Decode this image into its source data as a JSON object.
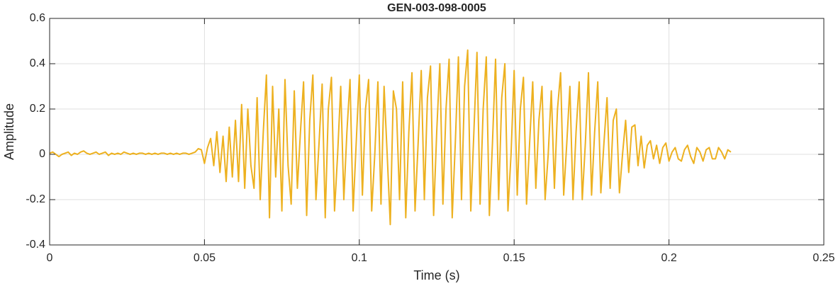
{
  "chart_data": {
    "type": "line",
    "title": "GEN-003-098-0005",
    "x_label": "Time (s)",
    "y_label": "Amplitude",
    "color": "#EDB120",
    "grid": true,
    "xlim": [
      0,
      0.25
    ],
    "xticks": [
      0,
      0.05,
      0.1,
      0.15,
      0.2,
      0.25
    ],
    "ylim": [
      -0.4,
      0.6
    ],
    "yticks": [
      -0.4,
      -0.2,
      0,
      0.2,
      0.4,
      0.6
    ],
    "x": [
      0,
      0.001,
      0.002,
      0.003,
      0.004,
      0.005,
      0.006,
      0.007,
      0.008,
      0.009,
      0.01,
      0.011,
      0.012,
      0.013,
      0.014,
      0.015,
      0.016,
      0.017,
      0.018,
      0.019,
      0.02,
      0.021,
      0.022,
      0.023,
      0.024,
      0.025,
      0.026,
      0.027,
      0.028,
      0.029,
      0.03,
      0.031,
      0.032,
      0.033,
      0.034,
      0.035,
      0.036,
      0.037,
      0.038,
      0.039,
      0.04,
      0.041,
      0.042,
      0.043,
      0.044,
      0.045,
      0.046,
      0.047,
      0.048,
      0.049,
      0.05,
      0.051,
      0.052,
      0.053,
      0.054,
      0.055,
      0.056,
      0.057,
      0.058,
      0.059,
      0.06,
      0.061,
      0.062,
      0.063,
      0.064,
      0.065,
      0.066,
      0.067,
      0.068,
      0.069,
      0.07,
      0.071,
      0.072,
      0.073,
      0.074,
      0.075,
      0.076,
      0.077,
      0.078,
      0.079,
      0.08,
      0.081,
      0.082,
      0.083,
      0.084,
      0.085,
      0.086,
      0.087,
      0.088,
      0.089,
      0.09,
      0.091,
      0.092,
      0.093,
      0.094,
      0.095,
      0.096,
      0.097,
      0.098,
      0.099,
      0.1,
      0.101,
      0.102,
      0.103,
      0.104,
      0.105,
      0.106,
      0.107,
      0.108,
      0.109,
      0.11,
      0.111,
      0.112,
      0.113,
      0.114,
      0.115,
      0.116,
      0.117,
      0.118,
      0.119,
      0.12,
      0.121,
      0.122,
      0.123,
      0.124,
      0.125,
      0.126,
      0.127,
      0.128,
      0.129,
      0.13,
      0.131,
      0.132,
      0.133,
      0.134,
      0.135,
      0.136,
      0.137,
      0.138,
      0.139,
      0.14,
      0.141,
      0.142,
      0.143,
      0.144,
      0.145,
      0.146,
      0.147,
      0.148,
      0.149,
      0.15,
      0.151,
      0.152,
      0.153,
      0.154,
      0.155,
      0.156,
      0.157,
      0.158,
      0.159,
      0.16,
      0.161,
      0.162,
      0.163,
      0.164,
      0.165,
      0.166,
      0.167,
      0.168,
      0.169,
      0.17,
      0.171,
      0.172,
      0.173,
      0.174,
      0.175,
      0.176,
      0.177,
      0.178,
      0.179,
      0.18,
      0.181,
      0.182,
      0.183,
      0.184,
      0.185,
      0.186,
      0.187,
      0.188,
      0.189,
      0.19,
      0.191,
      0.192,
      0.193,
      0.194,
      0.195,
      0.196,
      0.197,
      0.198,
      0.199,
      0.2,
      0.201,
      0.202,
      0.203,
      0.204,
      0.205,
      0.206,
      0.207,
      0.208,
      0.209,
      0.21,
      0.211,
      0.212,
      0.213,
      0.214,
      0.215,
      0.216,
      0.217,
      0.218,
      0.219,
      0.22
    ],
    "values": [
      0.005,
      0.01,
      0.0,
      -0.01,
      0.0,
      0.005,
      0.01,
      -0.005,
      0.005,
      0.0,
      0.01,
      0.015,
      0.005,
      0.0,
      0.005,
      0.01,
      0.0,
      0.005,
      0.01,
      -0.005,
      0.005,
      0.0,
      0.005,
      0.0,
      0.01,
      0.005,
      0.0,
      0.005,
      0.0,
      0.005,
      0.005,
      0.0,
      0.005,
      0.0,
      0.005,
      0.0,
      0.005,
      0.005,
      0.0,
      0.005,
      0.0,
      0.005,
      0.0,
      0.005,
      0.005,
      0.0,
      0.005,
      0.01,
      0.025,
      0.02,
      -0.04,
      0.03,
      0.07,
      -0.05,
      0.1,
      -0.08,
      0.08,
      -0.12,
      0.12,
      -0.1,
      0.15,
      -0.12,
      0.22,
      -0.15,
      0.2,
      -0.05,
      -0.15,
      0.25,
      -0.2,
      0.1,
      0.35,
      -0.28,
      0.3,
      -0.1,
      0.2,
      -0.25,
      0.33,
      -0.05,
      -0.22,
      0.28,
      -0.15,
      0.1,
      0.32,
      -0.27,
      0.15,
      0.35,
      -0.2,
      0.05,
      0.31,
      -0.28,
      0.2,
      0.34,
      -0.25,
      0.0,
      0.3,
      -0.2,
      0.1,
      0.33,
      -0.25,
      0.05,
      0.35,
      -0.18,
      0.2,
      0.33,
      -0.25,
      0.0,
      0.32,
      -0.22,
      0.3,
      0.0,
      -0.31,
      0.28,
      0.2,
      -0.2,
      0.32,
      -0.28,
      0.1,
      0.36,
      -0.25,
      0.05,
      0.37,
      -0.2,
      0.25,
      0.39,
      -0.27,
      0.1,
      0.4,
      -0.22,
      0.2,
      0.42,
      -0.28,
      0.05,
      0.43,
      -0.2,
      0.3,
      0.46,
      -0.25,
      0.1,
      0.45,
      -0.22,
      0.2,
      0.43,
      -0.27,
      0.05,
      0.42,
      -0.2,
      0.25,
      0.4,
      -0.25,
      0.0,
      0.37,
      -0.18,
      0.2,
      0.34,
      -0.22,
      0.05,
      0.32,
      -0.15,
      0.15,
      0.3,
      -0.2,
      0.0,
      0.28,
      -0.15,
      0.2,
      0.36,
      -0.18,
      0.05,
      0.3,
      -0.2,
      0.1,
      0.32,
      -0.2,
      0.05,
      0.36,
      -0.18,
      0.1,
      0.32,
      -0.17,
      0.05,
      0.25,
      -0.15,
      0.15,
      0.2,
      -0.17,
      0.0,
      0.15,
      -0.08,
      0.12,
      0.13,
      -0.05,
      0.08,
      -0.06,
      0.04,
      0.06,
      -0.02,
      0.04,
      -0.04,
      0.03,
      0.05,
      -0.03,
      0.01,
      0.03,
      -0.02,
      -0.03,
      0.02,
      0.04,
      -0.01,
      -0.04,
      0.03,
      0.01,
      -0.03,
      0.02,
      0.03,
      -0.02,
      -0.02,
      0.03,
      0.01,
      -0.02,
      0.02,
      0.01
    ]
  }
}
